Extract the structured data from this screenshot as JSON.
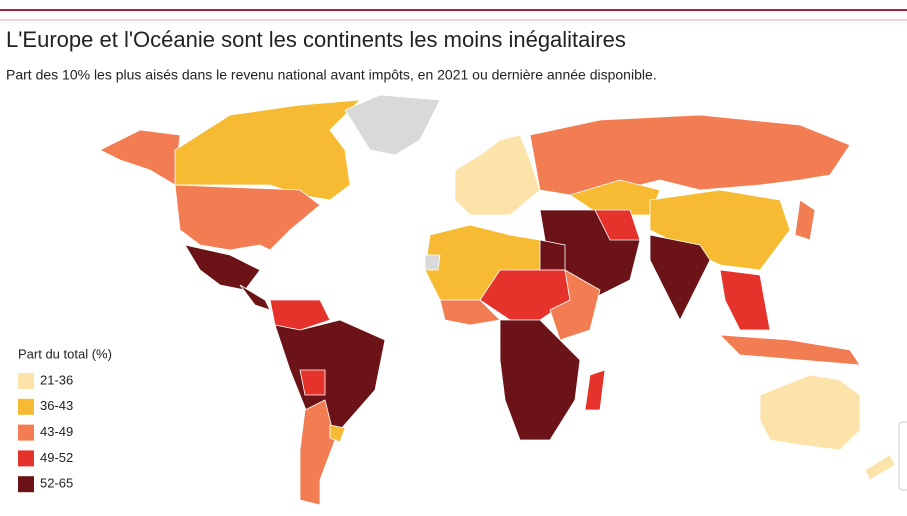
{
  "header": {
    "title": "L'Europe et l'Océanie sont les continents les moins inégalitaires",
    "subtitle": "Part des 10% les plus aisés dans le revenu national avant impôts, en 2021 ou dernière année disponible."
  },
  "legend": {
    "title": "Part du total (%)",
    "items": [
      {
        "label": "21-36",
        "color": "#fbe3aa"
      },
      {
        "label": "36-43",
        "color": "#f6bb33"
      },
      {
        "label": "43-49",
        "color": "#f27d52"
      },
      {
        "label": "49-52",
        "color": "#e5322b"
      },
      {
        "label": "52-65",
        "color": "#6b1316"
      }
    ]
  }
}
